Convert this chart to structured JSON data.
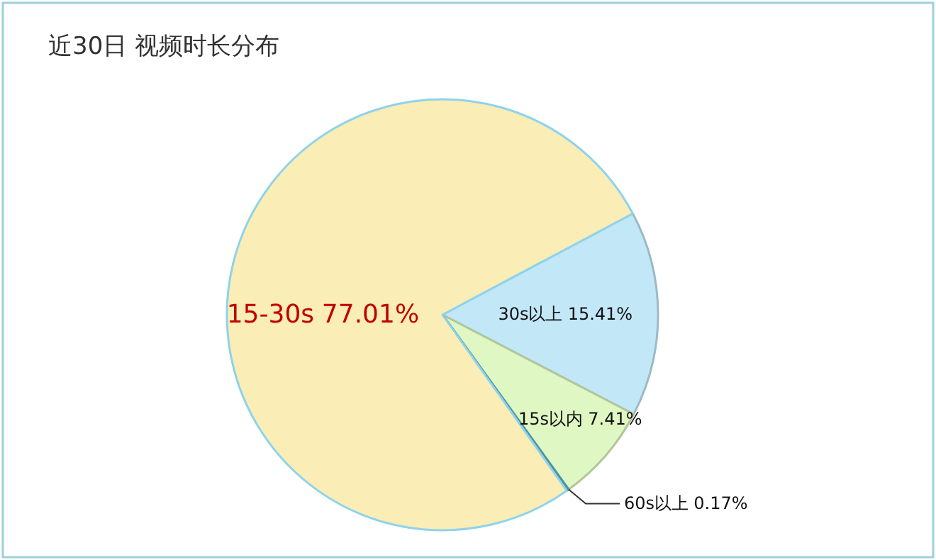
{
  "chart_data": {
    "type": "pie",
    "title": "近30日 视频时长分布",
    "categories": [
      "30s以上",
      "15s以内",
      "60s以上",
      "15-30s"
    ],
    "values": [
      15.41,
      7.41,
      0.17,
      77.01
    ],
    "colors": [
      "#c2e8f8",
      "#dff7c2",
      "#5fb8c8",
      "#faedb5"
    ],
    "value_labels": [
      "15.41%",
      "7.41%",
      "0.17%",
      "77.01%"
    ]
  }
}
